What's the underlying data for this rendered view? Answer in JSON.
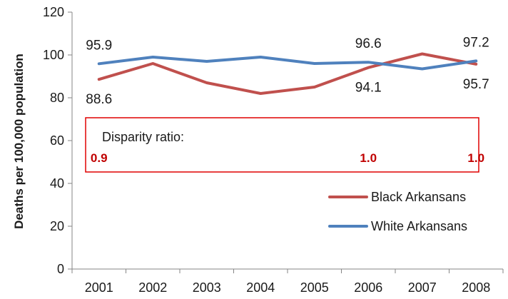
{
  "chart_data": {
    "type": "line",
    "ylabel": "Deaths per 100,000 population",
    "ylim": [
      0,
      120
    ],
    "yticks": [
      "0",
      "20",
      "40",
      "60",
      "80",
      "100",
      "120"
    ],
    "categories": [
      "2001",
      "2002",
      "2003",
      "2004",
      "2005",
      "2006",
      "2007",
      "2008"
    ],
    "series": [
      {
        "name": "Black Arkansans",
        "color": "#c0504d",
        "values": [
          88.6,
          96.0,
          87.0,
          82.0,
          85.0,
          94.1,
          100.5,
          95.7
        ]
      },
      {
        "name": "White Arkansans",
        "color": "#4f81bd",
        "values": [
          95.9,
          99.0,
          97.0,
          99.0,
          96.0,
          96.6,
          93.5,
          97.2
        ]
      }
    ],
    "data_labels": [
      {
        "text": "95.9",
        "series": 1,
        "index": 0,
        "placement": "above"
      },
      {
        "text": "88.6",
        "series": 0,
        "index": 0,
        "placement": "below"
      },
      {
        "text": "96.6",
        "series": 1,
        "index": 5,
        "placement": "above"
      },
      {
        "text": "94.1",
        "series": 0,
        "index": 5,
        "placement": "below"
      },
      {
        "text": "97.2",
        "series": 1,
        "index": 7,
        "placement": "above"
      },
      {
        "text": "95.7",
        "series": 0,
        "index": 7,
        "placement": "below"
      }
    ],
    "disparity": {
      "title": "Disparity ratio:",
      "color": "#c00000",
      "values": [
        {
          "text": "0.9",
          "index": 0
        },
        {
          "text": "1.0",
          "index": 5
        },
        {
          "text": "1.0",
          "index": 7
        }
      ]
    },
    "legend_position": "bottom-right",
    "grid": false
  }
}
